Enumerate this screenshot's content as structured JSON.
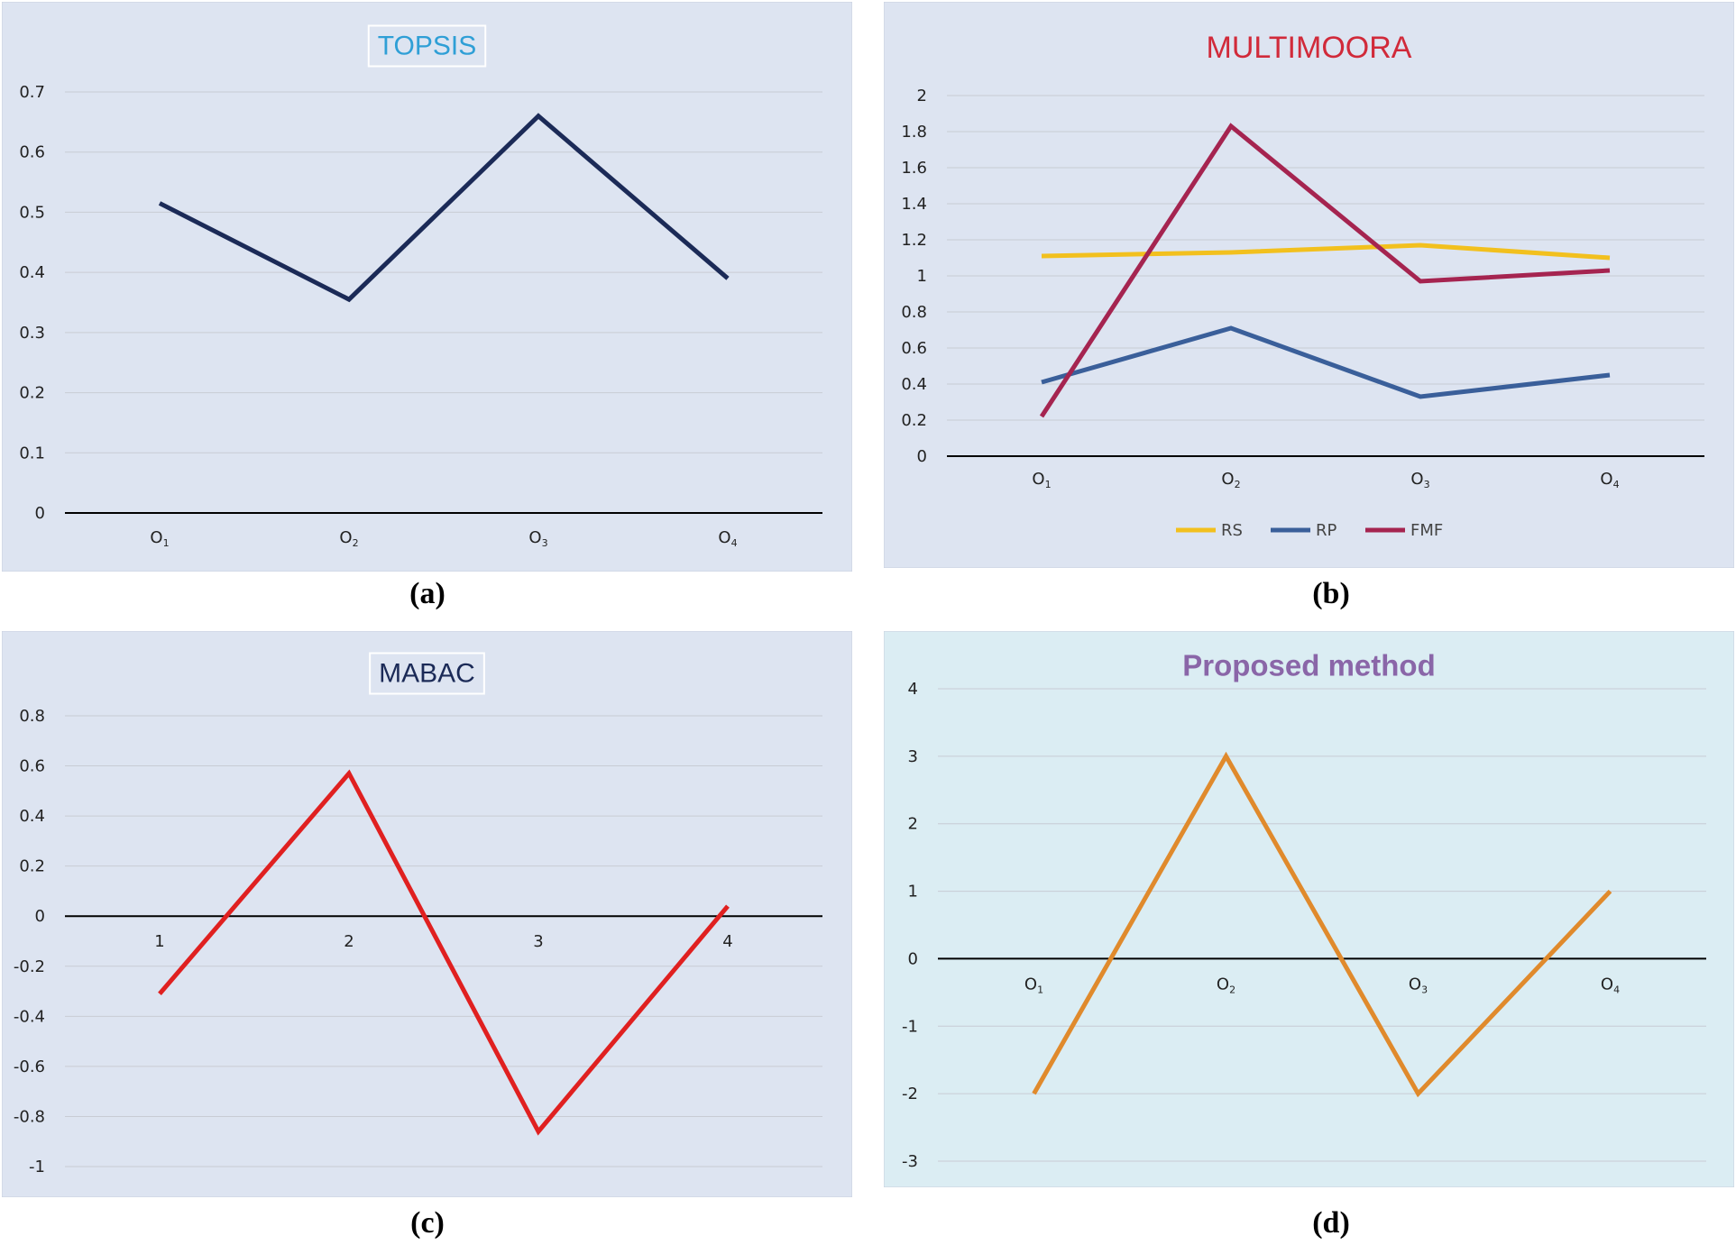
{
  "captions": [
    "(a)",
    "(b)",
    "(c)",
    "(d)"
  ],
  "chart_data": [
    {
      "type": "line",
      "title": "TOPSIS",
      "title_color": "#2f9fd6",
      "background": "#dde4f1",
      "categories": [
        "O1",
        "O2",
        "O3",
        "O4"
      ],
      "ylim": [
        0,
        0.7
      ],
      "yticks": [
        "0",
        "0.1",
        "0.2",
        "0.3",
        "0.4",
        "0.5",
        "0.6",
        "0.7"
      ],
      "series": [
        {
          "name": "TOPSIS",
          "color": "#1b2a57",
          "values": [
            0.515,
            0.355,
            0.66,
            0.39
          ]
        }
      ]
    },
    {
      "type": "line",
      "title": "MULTIMOORA",
      "title_color": "#d12a3a",
      "background": "#dde4f1",
      "categories": [
        "O1",
        "O2",
        "O3",
        "O4"
      ],
      "ylim": [
        0,
        2
      ],
      "yticks": [
        "0",
        "0.2",
        "0.4",
        "0.6",
        "0.8",
        "1",
        "1.2",
        "1.4",
        "1.6",
        "1.8",
        "2"
      ],
      "legend": [
        "RS",
        "RP",
        "FMF"
      ],
      "series": [
        {
          "name": "RS",
          "color": "#f2c01e",
          "values": [
            1.11,
            1.13,
            1.17,
            1.1
          ]
        },
        {
          "name": "RP",
          "color": "#3a5f9a",
          "values": [
            0.41,
            0.71,
            0.33,
            0.45
          ]
        },
        {
          "name": "FMF",
          "color": "#a52450",
          "values": [
            0.22,
            1.83,
            0.97,
            1.03
          ]
        }
      ]
    },
    {
      "type": "line",
      "title": "MABAC",
      "title_color": "#1b2a57",
      "background": "#dde4f1",
      "categories": [
        "1",
        "2",
        "3",
        "4"
      ],
      "ylim": [
        -1,
        0.8
      ],
      "yticks": [
        "-1",
        "-0.8",
        "-0.6",
        "-0.4",
        "-0.2",
        "0",
        "0.2",
        "0.4",
        "0.6",
        "0.8"
      ],
      "series": [
        {
          "name": "MABAC",
          "color": "#e02020",
          "values": [
            -0.31,
            0.57,
            -0.86,
            0.04
          ]
        }
      ]
    },
    {
      "type": "line",
      "title": "Proposed method",
      "title_color": "#8a66a8",
      "background": "#dbedf3",
      "categories": [
        "O1",
        "O2",
        "O3",
        "O4"
      ],
      "ylim": [
        -3,
        4
      ],
      "yticks": [
        "-3",
        "-2",
        "-1",
        "0",
        "1",
        "2",
        "3",
        "4"
      ],
      "series": [
        {
          "name": "Proposed method",
          "color": "#e08a2c",
          "values": [
            -2,
            3,
            -2,
            1
          ]
        }
      ]
    }
  ]
}
